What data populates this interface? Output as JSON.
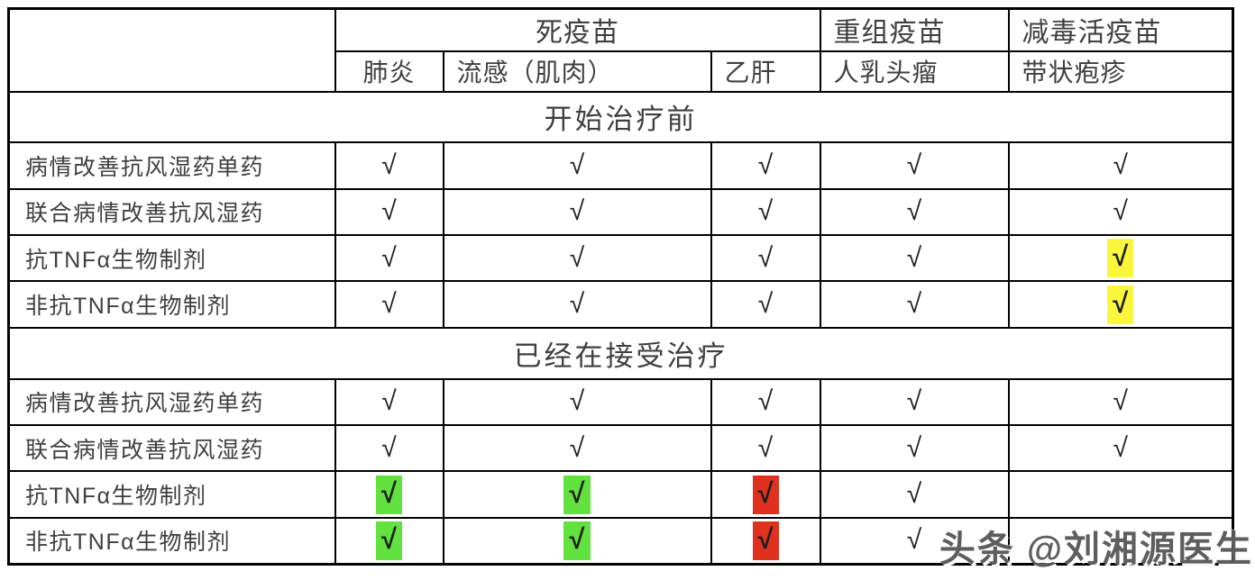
{
  "chart_data": {
    "type": "table",
    "title": "",
    "check_symbol": "√",
    "column_groups": [
      {
        "label": "",
        "span": 1
      },
      {
        "label": "死疫苗",
        "span": 3
      },
      {
        "label": "重组疫苗",
        "span": 1
      },
      {
        "label": "减毒活疫苗",
        "span": 1
      }
    ],
    "columns": [
      "",
      "肺炎",
      "流感（肌肉）",
      "乙肝",
      "人乳头瘤",
      "带状疱疹"
    ],
    "sections": [
      {
        "header": "开始治疗前",
        "rows": [
          {
            "label": "病情改善抗风湿药单药",
            "cells": [
              "check",
              "check",
              "check",
              "check",
              "check"
            ]
          },
          {
            "label": "联合病情改善抗风湿药",
            "cells": [
              "check",
              "check",
              "check",
              "check",
              "check"
            ]
          },
          {
            "label": "抗TNFα生物制剂",
            "cells": [
              "check",
              "check",
              "check",
              "check",
              "check-yellow"
            ]
          },
          {
            "label": "非抗TNFα生物制剂",
            "cells": [
              "check",
              "check",
              "check",
              "check",
              "check-yellow"
            ]
          }
        ]
      },
      {
        "header": "已经在接受治疗",
        "rows": [
          {
            "label": "病情改善抗风湿药单药",
            "cells": [
              "check",
              "check",
              "check",
              "check",
              "check"
            ]
          },
          {
            "label": "联合病情改善抗风湿药",
            "cells": [
              "check",
              "check",
              "check",
              "check",
              "check"
            ]
          },
          {
            "label": "抗TNFα生物制剂",
            "cells": [
              "check-green",
              "check-green",
              "check-red",
              "check",
              "empty"
            ]
          },
          {
            "label": "非抗TNFα生物制剂",
            "cells": [
              "check-green",
              "check-green",
              "check-red",
              "check",
              "empty"
            ]
          }
        ]
      }
    ],
    "highlight_colors": {
      "yellow": "#FAF63C",
      "green": "#62E23F",
      "red": "#E0301E"
    },
    "layout": {
      "grid": true,
      "header_rows": 2,
      "section_rows_span_full_width": true
    },
    "watermark": "头条 @刘湘源医生"
  }
}
